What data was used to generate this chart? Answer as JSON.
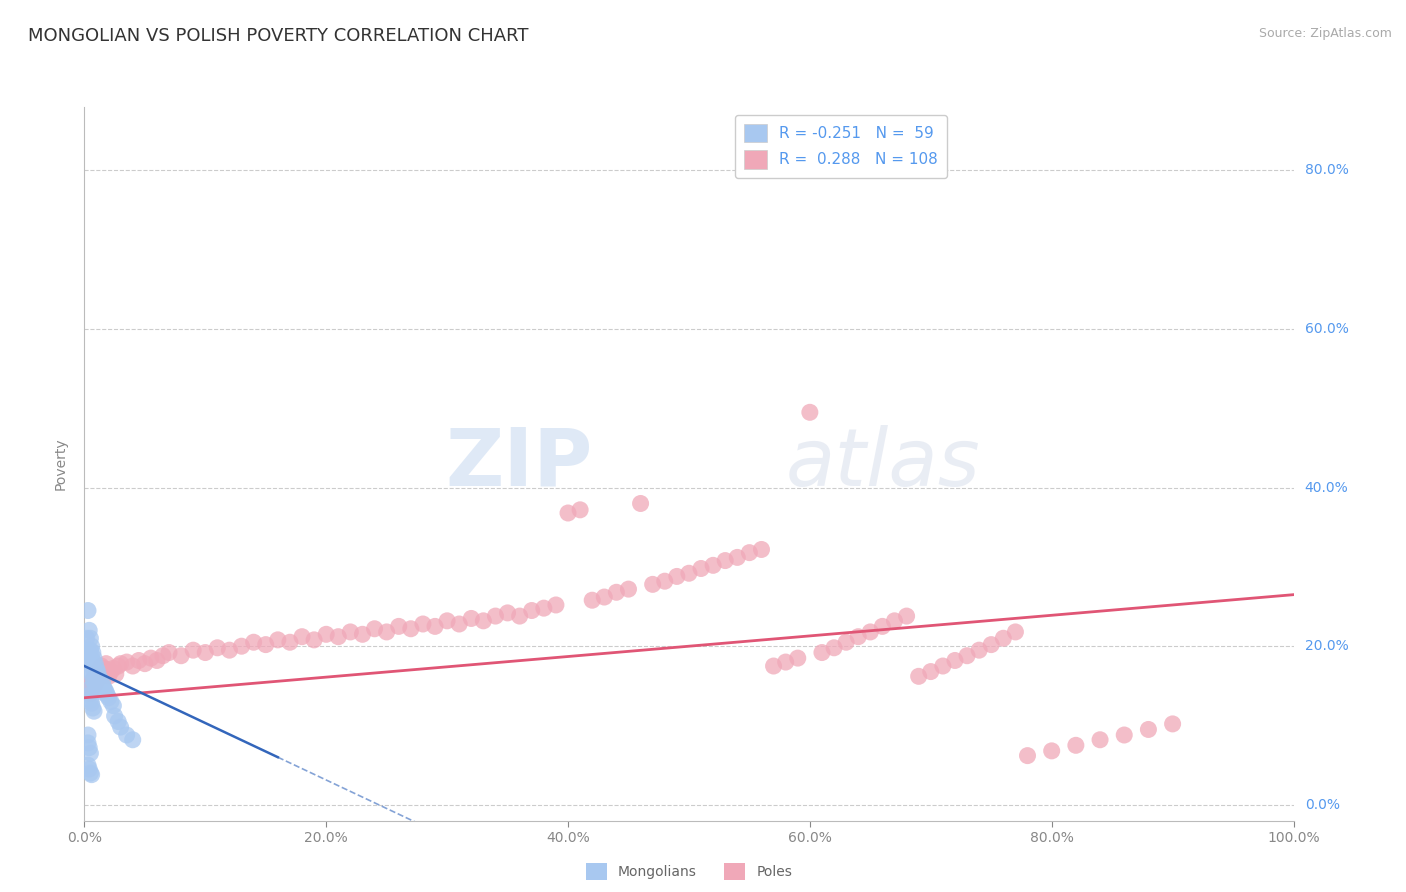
{
  "title": "MONGOLIAN VS POLISH POVERTY CORRELATION CHART",
  "source": "Source: ZipAtlas.com",
  "ylabel": "Poverty",
  "xlim": [
    0.0,
    1.0
  ],
  "ylim": [
    -0.02,
    0.88
  ],
  "x_ticks": [
    0.0,
    0.2,
    0.4,
    0.6,
    0.8,
    1.0
  ],
  "x_tick_labels": [
    "0.0%",
    "20.0%",
    "40.0%",
    "60.0%",
    "80.0%",
    "100.0%"
  ],
  "y_ticks": [
    0.0,
    0.2,
    0.4,
    0.6,
    0.8
  ],
  "y_tick_labels": [
    "0.0%",
    "20.0%",
    "40.0%",
    "60.0%",
    "80.0%"
  ],
  "background_color": "#ffffff",
  "grid_color": "#cccccc",
  "mongolian_color": "#a8c8f0",
  "polish_color": "#f0a8b8",
  "mongolian_line_color": "#3366bb",
  "polish_line_color": "#e05575",
  "mongolian_R": -0.251,
  "mongolian_N": 59,
  "polish_R": 0.288,
  "polish_N": 108,
  "legend_label_mongolians": "Mongolians",
  "legend_label_poles": "Poles",
  "watermark_zip": "ZIP",
  "watermark_atlas": "atlas",
  "title_fontsize": 13,
  "tick_color_y": "#5599ee",
  "tick_color_x": "#666666",
  "mongolian_x": [
    0.002,
    0.003,
    0.003,
    0.004,
    0.004,
    0.004,
    0.005,
    0.005,
    0.005,
    0.006,
    0.006,
    0.006,
    0.007,
    0.007,
    0.007,
    0.008,
    0.008,
    0.008,
    0.009,
    0.009,
    0.009,
    0.01,
    0.01,
    0.01,
    0.011,
    0.011,
    0.012,
    0.012,
    0.013,
    0.013,
    0.014,
    0.015,
    0.015,
    0.016,
    0.017,
    0.018,
    0.019,
    0.02,
    0.022,
    0.024,
    0.003,
    0.004,
    0.005,
    0.006,
    0.007,
    0.008,
    0.003,
    0.004,
    0.005,
    0.006,
    0.003,
    0.003,
    0.004,
    0.005,
    0.025,
    0.028,
    0.03,
    0.035,
    0.04
  ],
  "mongolian_y": [
    0.21,
    0.245,
    0.195,
    0.22,
    0.185,
    0.17,
    0.21,
    0.195,
    0.18,
    0.2,
    0.185,
    0.165,
    0.192,
    0.175,
    0.158,
    0.185,
    0.17,
    0.155,
    0.178,
    0.165,
    0.152,
    0.172,
    0.16,
    0.148,
    0.168,
    0.155,
    0.162,
    0.15,
    0.158,
    0.145,
    0.152,
    0.155,
    0.142,
    0.148,
    0.145,
    0.142,
    0.138,
    0.135,
    0.13,
    0.125,
    0.145,
    0.138,
    0.132,
    0.128,
    0.122,
    0.118,
    0.05,
    0.045,
    0.04,
    0.038,
    0.088,
    0.078,
    0.072,
    0.065,
    0.112,
    0.105,
    0.098,
    0.088,
    0.082
  ],
  "polish_x": [
    0.003,
    0.004,
    0.005,
    0.006,
    0.007,
    0.008,
    0.009,
    0.01,
    0.011,
    0.012,
    0.013,
    0.014,
    0.015,
    0.016,
    0.017,
    0.018,
    0.019,
    0.02,
    0.022,
    0.024,
    0.026,
    0.028,
    0.03,
    0.035,
    0.04,
    0.045,
    0.05,
    0.055,
    0.06,
    0.065,
    0.07,
    0.08,
    0.09,
    0.1,
    0.11,
    0.12,
    0.13,
    0.14,
    0.15,
    0.16,
    0.17,
    0.18,
    0.19,
    0.2,
    0.21,
    0.22,
    0.23,
    0.24,
    0.25,
    0.26,
    0.27,
    0.28,
    0.29,
    0.3,
    0.31,
    0.32,
    0.33,
    0.34,
    0.35,
    0.36,
    0.37,
    0.38,
    0.39,
    0.4,
    0.41,
    0.42,
    0.43,
    0.44,
    0.45,
    0.46,
    0.47,
    0.48,
    0.49,
    0.5,
    0.51,
    0.52,
    0.53,
    0.54,
    0.55,
    0.56,
    0.57,
    0.58,
    0.59,
    0.6,
    0.61,
    0.62,
    0.63,
    0.64,
    0.65,
    0.66,
    0.67,
    0.68,
    0.69,
    0.7,
    0.71,
    0.72,
    0.73,
    0.74,
    0.75,
    0.76,
    0.77,
    0.78,
    0.8,
    0.82,
    0.84,
    0.86,
    0.88,
    0.9
  ],
  "polish_y": [
    0.148,
    0.152,
    0.14,
    0.155,
    0.148,
    0.16,
    0.152,
    0.165,
    0.158,
    0.17,
    0.162,
    0.175,
    0.168,
    0.172,
    0.165,
    0.178,
    0.17,
    0.162,
    0.168,
    0.172,
    0.165,
    0.175,
    0.178,
    0.18,
    0.175,
    0.182,
    0.178,
    0.185,
    0.182,
    0.188,
    0.192,
    0.188,
    0.195,
    0.192,
    0.198,
    0.195,
    0.2,
    0.205,
    0.202,
    0.208,
    0.205,
    0.212,
    0.208,
    0.215,
    0.212,
    0.218,
    0.215,
    0.222,
    0.218,
    0.225,
    0.222,
    0.228,
    0.225,
    0.232,
    0.228,
    0.235,
    0.232,
    0.238,
    0.242,
    0.238,
    0.245,
    0.248,
    0.252,
    0.368,
    0.372,
    0.258,
    0.262,
    0.268,
    0.272,
    0.38,
    0.278,
    0.282,
    0.288,
    0.292,
    0.298,
    0.302,
    0.308,
    0.312,
    0.318,
    0.322,
    0.175,
    0.18,
    0.185,
    0.495,
    0.192,
    0.198,
    0.205,
    0.212,
    0.218,
    0.225,
    0.232,
    0.238,
    0.162,
    0.168,
    0.175,
    0.182,
    0.188,
    0.195,
    0.202,
    0.21,
    0.218,
    0.062,
    0.068,
    0.075,
    0.082,
    0.088,
    0.095,
    0.102
  ]
}
